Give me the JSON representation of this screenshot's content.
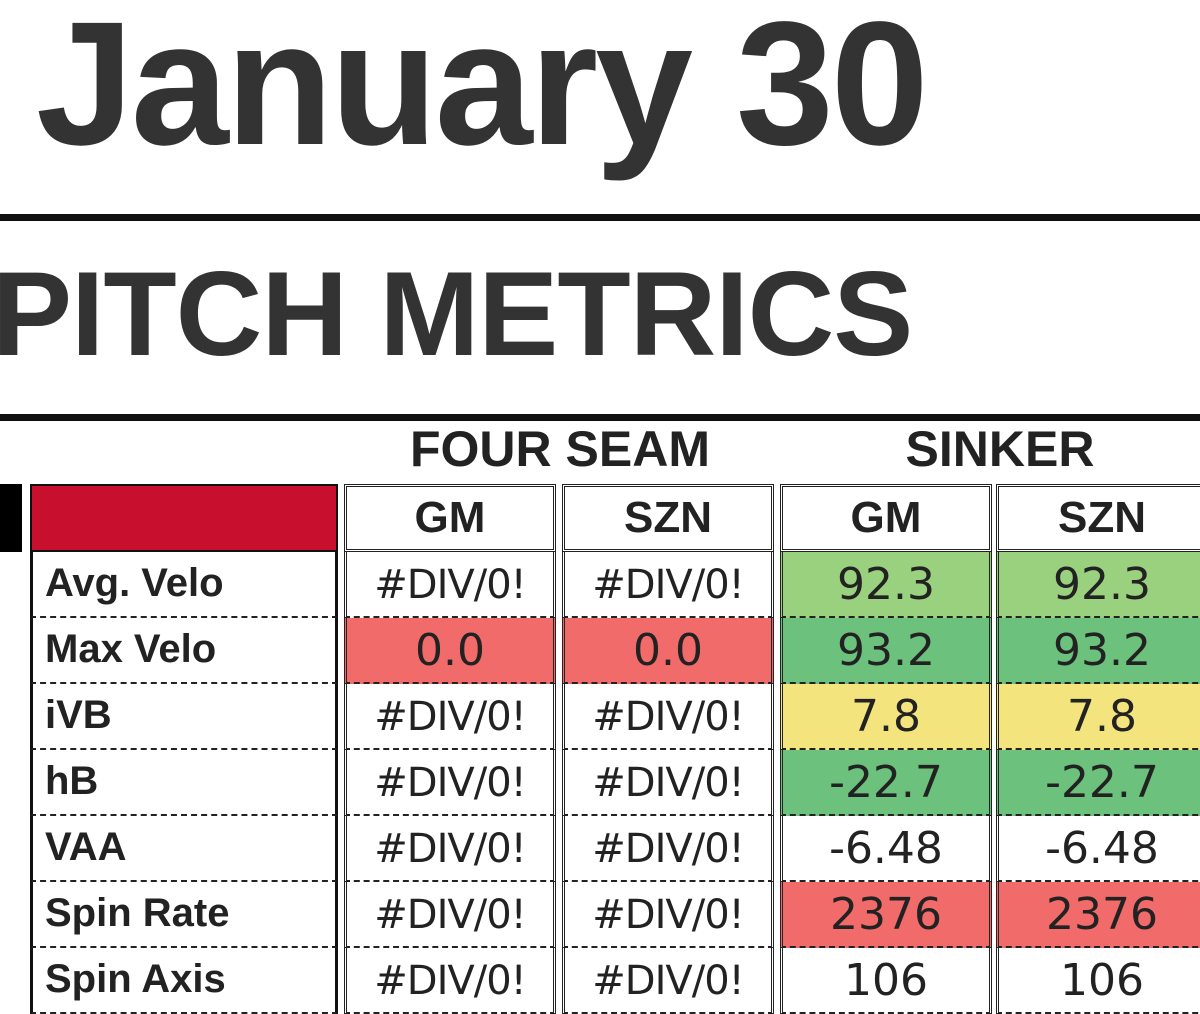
{
  "header": {
    "date": "January 30"
  },
  "section_title": "PITCH METRICS",
  "groups": {
    "four_seam": "FOUR SEAM",
    "sinker": "SINKER"
  },
  "columns": [
    "GM",
    "SZN",
    "GM",
    "SZN"
  ],
  "rows": [
    {
      "label": "Avg. Velo",
      "values": [
        "#DIV/0!",
        "#DIV/0!",
        "92.3",
        "92.3"
      ]
    },
    {
      "label": "Max Velo",
      "values": [
        "0.0",
        "0.0",
        "93.2",
        "93.2"
      ]
    },
    {
      "label": "iVB",
      "values": [
        "#DIV/0!",
        "#DIV/0!",
        "7.8",
        "7.8"
      ]
    },
    {
      "label": "hB",
      "values": [
        "#DIV/0!",
        "#DIV/0!",
        "-22.7",
        "-22.7"
      ]
    },
    {
      "label": "VAA",
      "values": [
        "#DIV/0!",
        "#DIV/0!",
        "-6.48",
        "-6.48"
      ]
    },
    {
      "label": "Spin Rate",
      "values": [
        "#DIV/0!",
        "#DIV/0!",
        "2376",
        "2376"
      ]
    },
    {
      "label": "Spin Axis",
      "values": [
        "#DIV/0!",
        "#DIV/0!",
        "106",
        "106"
      ]
    }
  ],
  "colors": {
    "header_red": "#c8102e",
    "fill_light_green": "#9ad17f",
    "fill_green": "#6cc17d",
    "fill_yellow": "#f3e47e",
    "fill_red": "#f26b6b",
    "fill_none": "#ffffff"
  },
  "cell_fills": [
    [
      "none",
      "none",
      "light_green",
      "light_green"
    ],
    [
      "red",
      "red",
      "green",
      "green"
    ],
    [
      "none",
      "none",
      "yellow",
      "yellow"
    ],
    [
      "none",
      "none",
      "green",
      "green"
    ],
    [
      "none",
      "none",
      "none",
      "none"
    ],
    [
      "none",
      "none",
      "red",
      "red"
    ],
    [
      "none",
      "none",
      "none",
      "none"
    ]
  ]
}
